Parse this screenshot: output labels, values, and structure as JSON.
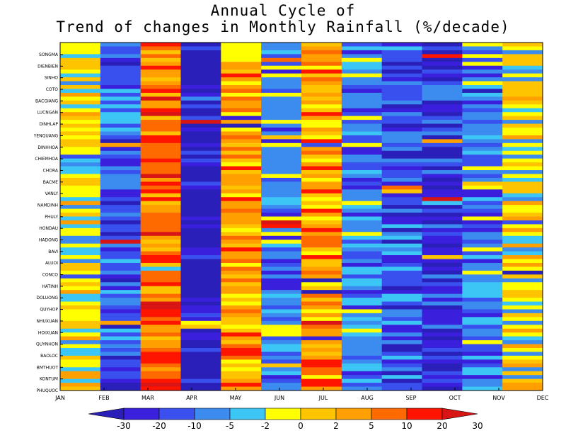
{
  "chart_data": {
    "type": "heatmap",
    "title": "Annual Cycle of",
    "subtitle": "Trend of changes in Monthly Rainfall (%/decade)",
    "xlabel": "",
    "ylabel": "",
    "x_categories": [
      "JAN",
      "FEB",
      "MAR",
      "APR",
      "MAY",
      "JUN",
      "JUL",
      "AUG",
      "SEP",
      "OCT",
      "NOV",
      "DEC"
    ],
    "y_categories": [
      "SONGMA",
      "DIENBIEN",
      "SINHO",
      "COTO",
      "BACGIANG",
      "LUCNGAN",
      "DINHLAP",
      "YENQUANG",
      "DINHHOA",
      "CHIEMHOA",
      "CHORA",
      "BACME",
      "VANLY",
      "NAMDINH",
      "PHULY",
      "HONDAU",
      "HADONG",
      "BAVI",
      "ALUOI",
      "CONCO",
      "HATINH",
      "DOLUONG",
      "QUYHOP",
      "NHUXUAN",
      "HOIXUAN",
      "QUYNHON",
      "BAOLOC",
      "BMTHUOT",
      "KONTUM",
      "PHUQUOC"
    ],
    "colorbar": {
      "labels": [
        "-30",
        "-20",
        "-10",
        "-5",
        "-2",
        "0",
        "2",
        "5",
        "10",
        "20",
        "30"
      ],
      "colors": [
        "#2a1fb8",
        "#3a1fdc",
        "#3a50ee",
        "#3c8cf0",
        "#3cc6f5",
        "#ffff00",
        "#ffc400",
        "#ffa000",
        "#ff6a00",
        "#ff1400",
        "#d81414"
      ]
    },
    "month_mean_class": [
      5,
      2,
      8,
      0,
      7,
      3,
      7,
      3,
      2,
      1,
      3,
      5
    ]
  }
}
